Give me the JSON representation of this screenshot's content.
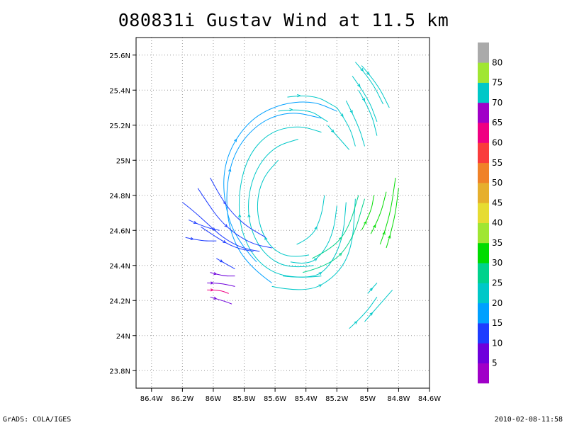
{
  "chart_data": {
    "type": "streamline",
    "title": "080831i Gustav Wind at 11.5 km",
    "xlim": [
      -86.5,
      -84.6
    ],
    "ylim": [
      23.7,
      25.7
    ],
    "x_ticks": [
      {
        "value": -86.4,
        "label": "86.4W"
      },
      {
        "value": -86.2,
        "label": "86.2W"
      },
      {
        "value": -86.0,
        "label": "86W"
      },
      {
        "value": -85.8,
        "label": "85.8W"
      },
      {
        "value": -85.6,
        "label": "85.6W"
      },
      {
        "value": -85.4,
        "label": "85.4W"
      },
      {
        "value": -85.2,
        "label": "85.2W"
      },
      {
        "value": -85.0,
        "label": "85W"
      },
      {
        "value": -84.8,
        "label": "84.8W"
      },
      {
        "value": -84.6,
        "label": "84.6W"
      }
    ],
    "y_ticks": [
      {
        "value": 23.8,
        "label": "23.8N"
      },
      {
        "value": 24.0,
        "label": "24N"
      },
      {
        "value": 24.2,
        "label": "24.2N"
      },
      {
        "value": 24.4,
        "label": "24.4N"
      },
      {
        "value": 24.6,
        "label": "24.6N"
      },
      {
        "value": 24.8,
        "label": "24.8N"
      },
      {
        "value": 25.0,
        "label": "25N"
      },
      {
        "value": 25.2,
        "label": "25.2N"
      },
      {
        "value": 25.4,
        "label": "25.4N"
      },
      {
        "value": 25.6,
        "label": "25.6N"
      }
    ],
    "grid": true,
    "center": {
      "lon": -85.5,
      "lat": 24.72
    },
    "eye_radius_deg": 0.22,
    "colorbar": {
      "labels": [
        "5",
        "10",
        "15",
        "20",
        "25",
        "30",
        "35",
        "40",
        "45",
        "50",
        "55",
        "60",
        "65",
        "70",
        "75",
        "80"
      ],
      "colors": [
        "#a000c8",
        "#6e00dc",
        "#1e3cff",
        "#00a0ff",
        "#00c8c8",
        "#00d28c",
        "#00dc00",
        "#a0e632",
        "#e6dc32",
        "#e6af2d",
        "#f08228",
        "#fa3c3c",
        "#f00082",
        "#a000c8",
        "#00c8c8",
        "#a0e632",
        "#aaaaaa"
      ]
    },
    "streamlines": [
      {
        "color": "#00c8c8",
        "points": [
          [
            -85.38,
            24.46
          ],
          [
            -85.5,
            24.44
          ],
          [
            -85.63,
            24.5
          ],
          [
            -85.7,
            24.62
          ],
          [
            -85.72,
            24.76
          ],
          [
            -85.68,
            24.9
          ],
          [
            -85.58,
            25.0
          ]
        ]
      },
      {
        "color": "#00c8c8",
        "points": [
          [
            -85.35,
            24.4
          ],
          [
            -85.5,
            24.38
          ],
          [
            -85.66,
            24.45
          ],
          [
            -85.76,
            24.6
          ],
          [
            -85.78,
            24.78
          ],
          [
            -85.72,
            24.96
          ],
          [
            -85.6,
            25.08
          ],
          [
            -85.45,
            25.12
          ]
        ]
      },
      {
        "color": "#00c8c8",
        "points": [
          [
            -85.3,
            24.34
          ],
          [
            -85.5,
            24.32
          ],
          [
            -85.7,
            24.4
          ],
          [
            -85.82,
            24.58
          ],
          [
            -85.84,
            24.8
          ],
          [
            -85.78,
            25.02
          ],
          [
            -85.64,
            25.16
          ],
          [
            -85.45,
            25.2
          ],
          [
            -85.3,
            25.16
          ]
        ]
      },
      {
        "color": "#00a0ff",
        "points": [
          [
            -85.62,
            24.3
          ],
          [
            -85.78,
            24.4
          ],
          [
            -85.9,
            24.6
          ],
          [
            -85.92,
            24.84
          ],
          [
            -85.86,
            25.06
          ],
          [
            -85.7,
            25.22
          ],
          [
            -85.5,
            25.28
          ],
          [
            -85.3,
            25.24
          ]
        ]
      },
      {
        "color": "#00a0ff",
        "points": [
          [
            -85.72,
            24.42
          ],
          [
            -85.86,
            24.55
          ],
          [
            -85.94,
            24.8
          ],
          [
            -85.92,
            25.02
          ],
          [
            -85.78,
            25.22
          ],
          [
            -85.58,
            25.32
          ],
          [
            -85.36,
            25.34
          ],
          [
            -85.2,
            25.28
          ]
        ]
      },
      {
        "color": "#00c8c8",
        "points": [
          [
            -85.52,
            25.36
          ],
          [
            -85.36,
            25.38
          ],
          [
            -85.2,
            25.3
          ]
        ]
      },
      {
        "color": "#00c8c8",
        "points": [
          [
            -85.58,
            25.28
          ],
          [
            -85.4,
            25.3
          ],
          [
            -85.26,
            25.22
          ]
        ]
      },
      {
        "color": "#1e3cff",
        "points": [
          [
            -86.2,
            24.76
          ],
          [
            -86.14,
            24.72
          ],
          [
            -86.04,
            24.64
          ],
          [
            -85.94,
            24.56
          ],
          [
            -85.82,
            24.5
          ],
          [
            -85.7,
            24.48
          ]
        ]
      },
      {
        "color": "#1e3cff",
        "points": [
          [
            -86.1,
            24.84
          ],
          [
            -86.04,
            24.76
          ],
          [
            -85.96,
            24.66
          ],
          [
            -85.86,
            24.58
          ],
          [
            -85.74,
            24.52
          ],
          [
            -85.62,
            24.5
          ]
        ]
      },
      {
        "color": "#1e3cff",
        "points": [
          [
            -86.02,
            24.9
          ],
          [
            -85.96,
            24.8
          ],
          [
            -85.88,
            24.7
          ],
          [
            -85.78,
            24.62
          ],
          [
            -85.66,
            24.56
          ]
        ]
      },
      {
        "color": "#1e3cff",
        "points": [
          [
            -86.08,
            24.62
          ],
          [
            -85.98,
            24.56
          ],
          [
            -85.86,
            24.5
          ],
          [
            -85.74,
            24.48
          ]
        ]
      },
      {
        "color": "#1e3cff",
        "points": [
          [
            -86.18,
            24.56
          ],
          [
            -86.08,
            24.54
          ],
          [
            -85.98,
            24.54
          ]
        ]
      },
      {
        "color": "#1e3cff",
        "points": [
          [
            -86.16,
            24.66
          ],
          [
            -86.06,
            24.62
          ],
          [
            -85.96,
            24.6
          ]
        ]
      },
      {
        "color": "#00c8c8",
        "points": [
          [
            -85.5,
            24.42
          ],
          [
            -85.38,
            24.4
          ],
          [
            -85.28,
            24.48
          ],
          [
            -85.22,
            24.6
          ],
          [
            -85.2,
            24.74
          ]
        ]
      },
      {
        "color": "#00c8c8",
        "points": [
          [
            -85.55,
            24.34
          ],
          [
            -85.36,
            24.32
          ],
          [
            -85.24,
            24.4
          ],
          [
            -85.16,
            24.56
          ],
          [
            -85.14,
            24.76
          ]
        ]
      },
      {
        "color": "#00c8c8",
        "points": [
          [
            -85.62,
            24.28
          ],
          [
            -85.4,
            24.24
          ],
          [
            -85.2,
            24.34
          ],
          [
            -85.1,
            24.5
          ],
          [
            -85.08,
            24.78
          ]
        ]
      },
      {
        "color": "#00c8c8",
        "points": [
          [
            -85.46,
            24.52
          ],
          [
            -85.36,
            24.56
          ],
          [
            -85.3,
            24.68
          ],
          [
            -85.28,
            24.8
          ]
        ]
      },
      {
        "color": "#00d28c",
        "points": [
          [
            -85.36,
            24.44
          ],
          [
            -85.22,
            24.5
          ],
          [
            -85.12,
            24.62
          ],
          [
            -85.06,
            24.8
          ]
        ]
      },
      {
        "color": "#00d28c",
        "points": [
          [
            -85.42,
            24.36
          ],
          [
            -85.24,
            24.4
          ],
          [
            -85.1,
            24.54
          ],
          [
            -85.02,
            24.78
          ]
        ]
      },
      {
        "color": "#00dc00",
        "points": [
          [
            -85.04,
            24.6
          ],
          [
            -84.98,
            24.7
          ],
          [
            -84.96,
            24.8
          ]
        ]
      },
      {
        "color": "#00dc00",
        "points": [
          [
            -84.98,
            24.58
          ],
          [
            -84.92,
            24.68
          ],
          [
            -84.88,
            24.82
          ]
        ]
      },
      {
        "color": "#00dc00",
        "points": [
          [
            -84.92,
            24.52
          ],
          [
            -84.86,
            24.66
          ],
          [
            -84.82,
            24.9
          ]
        ]
      },
      {
        "color": "#00dc00",
        "points": [
          [
            -84.88,
            24.5
          ],
          [
            -84.83,
            24.64
          ],
          [
            -84.8,
            24.84
          ]
        ]
      },
      {
        "color": "#00c8c8",
        "points": [
          [
            -85.26,
            25.2
          ],
          [
            -85.18,
            25.12
          ],
          [
            -85.12,
            25.06
          ]
        ]
      },
      {
        "color": "#00c8c8",
        "points": [
          [
            -85.2,
            25.3
          ],
          [
            -85.12,
            25.2
          ],
          [
            -85.08,
            25.08
          ]
        ]
      },
      {
        "color": "#00c8c8",
        "points": [
          [
            -85.14,
            25.34
          ],
          [
            -85.06,
            25.2
          ],
          [
            -85.02,
            25.08
          ]
        ]
      },
      {
        "color": "#00c8c8",
        "points": [
          [
            -85.04,
            25.54
          ],
          [
            -84.94,
            25.44
          ],
          [
            -84.86,
            25.3
          ]
        ]
      },
      {
        "color": "#00c8c8",
        "points": [
          [
            -85.08,
            25.56
          ],
          [
            -84.98,
            25.46
          ],
          [
            -84.9,
            25.32
          ]
        ]
      },
      {
        "color": "#00c8c8",
        "points": [
          [
            -85.1,
            25.48
          ],
          [
            -85.0,
            25.36
          ],
          [
            -84.94,
            25.22
          ]
        ]
      },
      {
        "color": "#00c8c8",
        "points": [
          [
            -85.06,
            25.4
          ],
          [
            -84.98,
            25.28
          ],
          [
            -84.94,
            25.14
          ]
        ]
      },
      {
        "color": "#00c8c8",
        "points": [
          [
            -85.12,
            24.04
          ],
          [
            -85.02,
            24.12
          ],
          [
            -84.94,
            24.22
          ]
        ]
      },
      {
        "color": "#00c8c8",
        "points": [
          [
            -85.02,
            24.08
          ],
          [
            -84.92,
            24.18
          ],
          [
            -84.84,
            24.26
          ]
        ]
      },
      {
        "color": "#00c8c8",
        "points": [
          [
            -85.0,
            24.24
          ],
          [
            -84.94,
            24.3
          ]
        ]
      },
      {
        "color": "#6e00dc",
        "points": [
          [
            -86.02,
            24.36
          ],
          [
            -85.94,
            24.34
          ],
          [
            -85.86,
            24.34
          ]
        ]
      },
      {
        "color": "#6e00dc",
        "points": [
          [
            -86.04,
            24.3
          ],
          [
            -85.96,
            24.3
          ],
          [
            -85.86,
            24.28
          ]
        ]
      },
      {
        "color": "#f00082",
        "points": [
          [
            -86.04,
            24.26
          ],
          [
            -85.96,
            24.26
          ],
          [
            -85.9,
            24.24
          ]
        ]
      },
      {
        "color": "#6e00dc",
        "points": [
          [
            -86.02,
            24.22
          ],
          [
            -85.94,
            24.2
          ],
          [
            -85.88,
            24.18
          ]
        ]
      },
      {
        "color": "#1e3cff",
        "points": [
          [
            -85.98,
            24.44
          ],
          [
            -85.9,
            24.4
          ],
          [
            -85.86,
            24.38
          ]
        ]
      }
    ]
  },
  "footer": {
    "left": "GrADS: COLA/IGES",
    "right": "2010-02-08-11:58"
  }
}
